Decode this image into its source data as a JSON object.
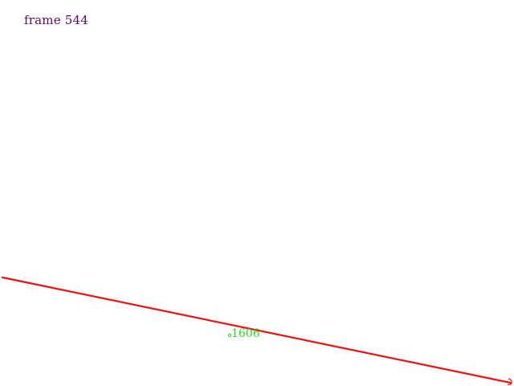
{
  "hud": {
    "frame_label": "frame 544"
  },
  "track": {
    "marker_value": "1606"
  },
  "colors": {
    "background": "#ffffff",
    "frame_text": "#5a0a63",
    "track_line": "#ee1111",
    "marker": "#22dd22"
  }
}
